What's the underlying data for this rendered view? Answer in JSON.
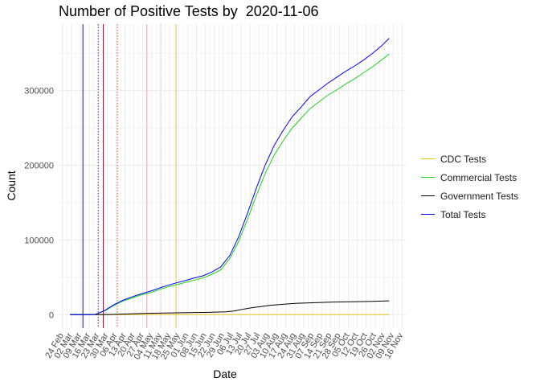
{
  "chart_data": {
    "type": "line",
    "title": "Number of Positive Tests by  2020-11-06",
    "xlabel": "Date",
    "ylabel": "Count",
    "x_tick_labels": [
      "24 Feb",
      "02 Mar",
      "09 Mar",
      "16 Mar",
      "23 Mar",
      "30 Mar",
      "06 Apr",
      "13 Apr",
      "20 Apr",
      "27 Apr",
      "04 May",
      "11 May",
      "18 May",
      "25 May",
      "01 Jun",
      "08 Jun",
      "15 Jun",
      "22 Jun",
      "29 Jun",
      "06 Jul",
      "13 Jul",
      "20 Jul",
      "27 Jul",
      "03 Aug",
      "10 Aug",
      "17 Aug",
      "24 Aug",
      "31 Aug",
      "07 Sep",
      "14 Sep",
      "21 Sep",
      "28 Sep",
      "05 Oct",
      "12 Oct",
      "19 Oct",
      "26 Oct",
      "02 Nov",
      "09 Nov",
      "16 Nov"
    ],
    "xlim": [
      "2020-02-21",
      "2020-11-19"
    ],
    "y_ticks": [
      0,
      100000,
      200000,
      300000
    ],
    "y_tick_labels": [
      "0",
      "100000",
      "200000",
      "300000"
    ],
    "ylim": [
      -18000,
      389000
    ],
    "grid": true,
    "legend_position": "right",
    "series": [
      {
        "name": "CDC Tests",
        "color": "#E6C619",
        "points": [
          [
            "2020-03-01",
            0
          ],
          [
            "2020-06-01",
            0
          ],
          [
            "2020-11-06",
            0
          ]
        ]
      },
      {
        "name": "Commercial Tests",
        "color": "#22D022",
        "points": [
          [
            "2020-03-01",
            0
          ],
          [
            "2020-03-15",
            0
          ],
          [
            "2020-03-21",
            500
          ],
          [
            "2020-03-28",
            5000
          ],
          [
            "2020-04-04",
            12000
          ],
          [
            "2020-04-11",
            18000
          ],
          [
            "2020-04-18",
            22000
          ],
          [
            "2020-04-25",
            26000
          ],
          [
            "2020-05-02",
            29000
          ],
          [
            "2020-05-09",
            33000
          ],
          [
            "2020-05-16",
            37000
          ],
          [
            "2020-05-23",
            40000
          ],
          [
            "2020-05-30",
            43000
          ],
          [
            "2020-06-06",
            46000
          ],
          [
            "2020-06-13",
            49000
          ],
          [
            "2020-06-20",
            54000
          ],
          [
            "2020-06-27",
            60000
          ],
          [
            "2020-07-04",
            75000
          ],
          [
            "2020-07-11",
            98000
          ],
          [
            "2020-07-18",
            128000
          ],
          [
            "2020-07-25",
            160000
          ],
          [
            "2020-08-01",
            190000
          ],
          [
            "2020-08-08",
            214000
          ],
          [
            "2020-08-15",
            233000
          ],
          [
            "2020-08-22",
            250000
          ],
          [
            "2020-08-29",
            263000
          ],
          [
            "2020-09-05",
            276000
          ],
          [
            "2020-09-12",
            285000
          ],
          [
            "2020-09-19",
            294000
          ],
          [
            "2020-09-26",
            301000
          ],
          [
            "2020-10-03",
            309000
          ],
          [
            "2020-10-10",
            316000
          ],
          [
            "2020-10-17",
            324000
          ],
          [
            "2020-10-24",
            332000
          ],
          [
            "2020-10-31",
            341000
          ],
          [
            "2020-11-06",
            349000
          ]
        ]
      },
      {
        "name": "Government Tests",
        "color": "#000000",
        "points": [
          [
            "2020-03-01",
            0
          ],
          [
            "2020-03-25",
            0
          ],
          [
            "2020-04-01",
            200
          ],
          [
            "2020-04-15",
            1000
          ],
          [
            "2020-05-01",
            1800
          ],
          [
            "2020-05-15",
            2200
          ],
          [
            "2020-06-01",
            2700
          ],
          [
            "2020-06-15",
            3000
          ],
          [
            "2020-07-01",
            3800
          ],
          [
            "2020-07-08",
            5000
          ],
          [
            "2020-07-15",
            7500
          ],
          [
            "2020-07-22",
            9500
          ],
          [
            "2020-07-29",
            11000
          ],
          [
            "2020-08-05",
            12500
          ],
          [
            "2020-08-12",
            13500
          ],
          [
            "2020-08-19",
            14500
          ],
          [
            "2020-08-26",
            15200
          ],
          [
            "2020-09-09",
            16000
          ],
          [
            "2020-09-23",
            16800
          ],
          [
            "2020-10-07",
            17200
          ],
          [
            "2020-10-21",
            17700
          ],
          [
            "2020-11-06",
            18500
          ]
        ]
      },
      {
        "name": "Total Tests",
        "color": "#0000FF",
        "points": [
          [
            "2020-03-01",
            0
          ],
          [
            "2020-03-15",
            0
          ],
          [
            "2020-03-21",
            500
          ],
          [
            "2020-03-28",
            5500
          ],
          [
            "2020-04-04",
            13000
          ],
          [
            "2020-04-11",
            19000
          ],
          [
            "2020-04-18",
            23500
          ],
          [
            "2020-04-25",
            27500
          ],
          [
            "2020-05-02",
            31000
          ],
          [
            "2020-05-09",
            35000
          ],
          [
            "2020-05-16",
            39000
          ],
          [
            "2020-05-23",
            42500
          ],
          [
            "2020-05-30",
            45500
          ],
          [
            "2020-06-06",
            49000
          ],
          [
            "2020-06-13",
            52000
          ],
          [
            "2020-06-20",
            57000
          ],
          [
            "2020-06-27",
            64000
          ],
          [
            "2020-07-04",
            79000
          ],
          [
            "2020-07-11",
            104000
          ],
          [
            "2020-07-18",
            136000
          ],
          [
            "2020-07-25",
            170000
          ],
          [
            "2020-08-01",
            201000
          ],
          [
            "2020-08-08",
            227000
          ],
          [
            "2020-08-15",
            247000
          ],
          [
            "2020-08-22",
            265000
          ],
          [
            "2020-08-29",
            278000
          ],
          [
            "2020-09-05",
            292000
          ],
          [
            "2020-09-12",
            301000
          ],
          [
            "2020-09-19",
            310000
          ],
          [
            "2020-09-26",
            318000
          ],
          [
            "2020-10-03",
            326000
          ],
          [
            "2020-10-10",
            333000
          ],
          [
            "2020-10-17",
            341000
          ],
          [
            "2020-10-24",
            350000
          ],
          [
            "2020-10-31",
            360000
          ],
          [
            "2020-11-06",
            370000
          ]
        ]
      }
    ],
    "vertical_markers": [
      {
        "date": "2020-03-11",
        "color": "#1A1A66",
        "style": "solid"
      },
      {
        "date": "2020-03-23",
        "color": "#3333CC",
        "style": "dotted"
      },
      {
        "date": "2020-03-27",
        "color": "#8B0A3A",
        "style": "solid"
      },
      {
        "date": "2020-04-07",
        "color": "#CC4A1A",
        "style": "dotted"
      },
      {
        "date": "2020-04-30",
        "color": "#F4A6C0",
        "style": "solid"
      },
      {
        "date": "2020-05-11",
        "color": "#F4A6C0",
        "style": "dotted"
      },
      {
        "date": "2020-05-23",
        "color": "#E6C619",
        "style": "solid"
      }
    ]
  }
}
